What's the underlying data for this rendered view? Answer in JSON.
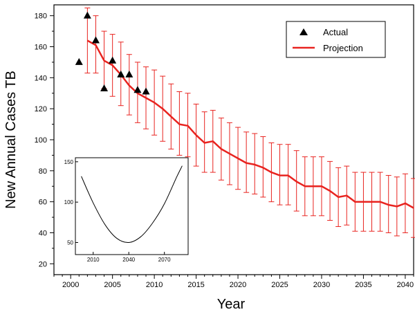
{
  "chart_data": {
    "type": "line",
    "xlabel": "Year",
    "ylabel": "New Annual Cases TB",
    "xlim": [
      1998,
      2041
    ],
    "ylim": [
      13,
      187
    ],
    "xticks": [
      2000,
      2005,
      2010,
      2015,
      2020,
      2025,
      2030,
      2035,
      2040
    ],
    "yticks": [
      20,
      40,
      60,
      80,
      100,
      120,
      140,
      160,
      180
    ],
    "legend_position": "top-right",
    "colors": {
      "actual": "#000000",
      "projection": "#e8231f"
    },
    "series": [
      {
        "name": "Actual",
        "marker": "triangle",
        "x": [
          2001,
          2002,
          2003,
          2004,
          2005,
          2006,
          2007,
          2008,
          2009
        ],
        "y": [
          150,
          180,
          164,
          133,
          151,
          142,
          142,
          132,
          131
        ]
      },
      {
        "name": "Projection",
        "x": [
          2002,
          2003,
          2004,
          2005,
          2006,
          2007,
          2008,
          2009,
          2010,
          2011,
          2012,
          2013,
          2014,
          2015,
          2016,
          2017,
          2018,
          2019,
          2020,
          2021,
          2022,
          2023,
          2024,
          2025,
          2026,
          2027,
          2028,
          2029,
          2030,
          2031,
          2032,
          2033,
          2034,
          2035,
          2036,
          2037,
          2038,
          2039,
          2040,
          2041
        ],
        "y": [
          164,
          161,
          151,
          148,
          142,
          135,
          130,
          127,
          124,
          120,
          115,
          110,
          109,
          103,
          98,
          99,
          94,
          91,
          88,
          85,
          84,
          82,
          79,
          77,
          77,
          73,
          70,
          70,
          70,
          67,
          63,
          64,
          60,
          60,
          60,
          60,
          58,
          57,
          59,
          56
        ],
        "err_low": [
          143,
          143,
          133,
          128,
          122,
          116,
          111,
          107,
          103,
          99,
          94,
          90,
          89,
          83,
          79,
          79,
          74,
          71,
          68,
          66,
          65,
          63,
          60,
          58,
          58,
          54,
          51,
          51,
          51,
          48,
          44,
          45,
          41,
          41,
          41,
          41,
          40,
          38,
          40,
          37
        ],
        "err_high": [
          185,
          180,
          170,
          168,
          163,
          155,
          150,
          147,
          145,
          141,
          136,
          131,
          130,
          123,
          118,
          119,
          114,
          111,
          108,
          105,
          104,
          102,
          98,
          97,
          97,
          93,
          89,
          89,
          89,
          86,
          82,
          83,
          79,
          79,
          79,
          79,
          77,
          76,
          78,
          75
        ]
      }
    ],
    "inset": {
      "type": "line",
      "xlim": [
        1995,
        2090
      ],
      "ylim": [
        35,
        155
      ],
      "xticks": [
        2010,
        2040,
        2070
      ],
      "yticks": [
        50,
        100,
        150
      ],
      "series": [
        {
          "x": [
            2000,
            2010,
            2020,
            2030,
            2040,
            2050,
            2060,
            2070,
            2080,
            2085
          ],
          "y": [
            132,
            99,
            72,
            55,
            50,
            57,
            74,
            98,
            130,
            145
          ]
        }
      ]
    }
  }
}
